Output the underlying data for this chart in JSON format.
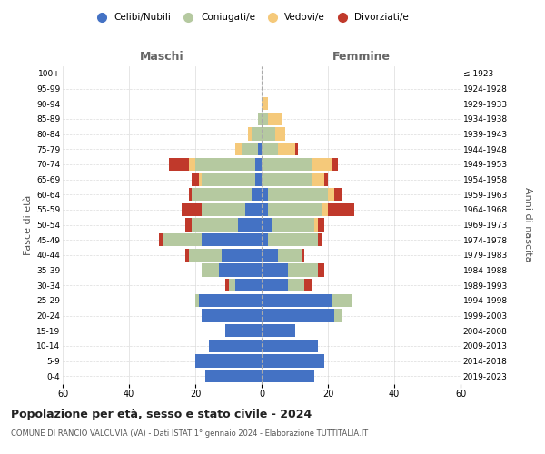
{
  "age_groups": [
    "0-4",
    "5-9",
    "10-14",
    "15-19",
    "20-24",
    "25-29",
    "30-34",
    "35-39",
    "40-44",
    "45-49",
    "50-54",
    "55-59",
    "60-64",
    "65-69",
    "70-74",
    "75-79",
    "80-84",
    "85-89",
    "90-94",
    "95-99",
    "100+"
  ],
  "birth_years": [
    "2019-2023",
    "2014-2018",
    "2009-2013",
    "2004-2008",
    "1999-2003",
    "1994-1998",
    "1989-1993",
    "1984-1988",
    "1979-1983",
    "1974-1978",
    "1969-1973",
    "1964-1968",
    "1959-1963",
    "1954-1958",
    "1949-1953",
    "1944-1948",
    "1939-1943",
    "1934-1938",
    "1929-1933",
    "1924-1928",
    "≤ 1923"
  ],
  "male": {
    "celibi": [
      17,
      20,
      16,
      11,
      18,
      19,
      8,
      13,
      12,
      18,
      7,
      5,
      3,
      2,
      2,
      1,
      0,
      0,
      0,
      0,
      0
    ],
    "coniugati": [
      0,
      0,
      0,
      0,
      0,
      1,
      2,
      5,
      10,
      12,
      14,
      13,
      18,
      16,
      18,
      5,
      3,
      1,
      0,
      0,
      0
    ],
    "vedovi": [
      0,
      0,
      0,
      0,
      0,
      0,
      0,
      0,
      0,
      0,
      0,
      0,
      0,
      1,
      2,
      2,
      1,
      0,
      0,
      0,
      0
    ],
    "divorziati": [
      0,
      0,
      0,
      0,
      0,
      0,
      1,
      0,
      1,
      1,
      2,
      6,
      1,
      2,
      6,
      0,
      0,
      0,
      0,
      0,
      0
    ]
  },
  "female": {
    "nubili": [
      16,
      19,
      17,
      10,
      22,
      21,
      8,
      8,
      5,
      2,
      3,
      2,
      2,
      0,
      0,
      0,
      0,
      0,
      0,
      0,
      0
    ],
    "coniugate": [
      0,
      0,
      0,
      0,
      2,
      6,
      5,
      9,
      7,
      15,
      13,
      16,
      18,
      15,
      15,
      5,
      4,
      2,
      0,
      0,
      0
    ],
    "vedove": [
      0,
      0,
      0,
      0,
      0,
      0,
      0,
      0,
      0,
      0,
      1,
      2,
      2,
      4,
      6,
      5,
      3,
      4,
      2,
      0,
      0
    ],
    "divorziate": [
      0,
      0,
      0,
      0,
      0,
      0,
      2,
      2,
      1,
      1,
      2,
      8,
      2,
      1,
      2,
      1,
      0,
      0,
      0,
      0,
      0
    ]
  },
  "colors": {
    "celibi_nubili": "#4472c4",
    "coniugati": "#b5c9a0",
    "vedovi": "#f5c97a",
    "divorziati": "#c0392b"
  },
  "xlim": 60,
  "title": "Popolazione per età, sesso e stato civile - 2024",
  "subtitle": "COMUNE DI RANCIO VALCUVIA (VA) - Dati ISTAT 1° gennaio 2024 - Elaborazione TUTTITALIA.IT",
  "ylabel_left": "Fasce di età",
  "ylabel_right": "Anni di nascita",
  "xlabel_left": "Maschi",
  "xlabel_right": "Femmine",
  "background_color": "#ffffff",
  "grid_color": "#cccccc"
}
